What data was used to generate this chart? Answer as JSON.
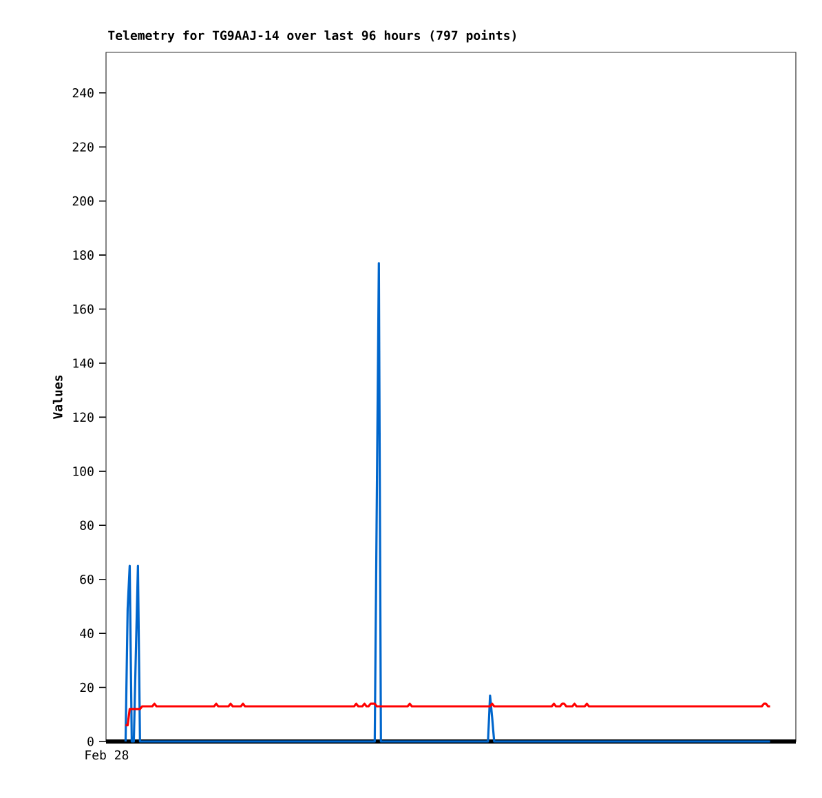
{
  "chart_data": {
    "type": "line",
    "title": "Telemetry for TG9AAJ-14 over last 96 hours (797 points)",
    "ylabel": "Values",
    "annotations": [
      "Feb 28"
    ],
    "categories": [
      null,
      null,
      null,
      null,
      null,
      null,
      null,
      null,
      null,
      null,
      null,
      null,
      null,
      null,
      null,
      null,
      null,
      null,
      null,
      null,
      null,
      null,
      null,
      null,
      null,
      null,
      null,
      null,
      null,
      null,
      null,
      null,
      null,
      null,
      null,
      null,
      null,
      null,
      null,
      null,
      null,
      null,
      null,
      null,
      null,
      null,
      null,
      null,
      null,
      null,
      null,
      null,
      null,
      null,
      null,
      null,
      null,
      null,
      null,
      null,
      null,
      null,
      null,
      null,
      null,
      null,
      null,
      null,
      null,
      null,
      null,
      null,
      null,
      null,
      null,
      null,
      null,
      null,
      null,
      null,
      null,
      null,
      null,
      null,
      null,
      null,
      null,
      null,
      null,
      null,
      null,
      null,
      null,
      null,
      null,
      null,
      null,
      null,
      null,
      null,
      null,
      null,
      null,
      null,
      null,
      null,
      null,
      null,
      null,
      null,
      null,
      null,
      null,
      null,
      null,
      null,
      null,
      null,
      null,
      null,
      null,
      null,
      null,
      null,
      null,
      null,
      null,
      null,
      null,
      null,
      null,
      null,
      null,
      null,
      null,
      null,
      null,
      null,
      null,
      null,
      null,
      null,
      null,
      null,
      null,
      null,
      null,
      null,
      null,
      null,
      null,
      null,
      null,
      null,
      null,
      null,
      null,
      null,
      null,
      null,
      null,
      null,
      null,
      null,
      null,
      null,
      null,
      null,
      null,
      null,
      null,
      null,
      null,
      null,
      null,
      null,
      null,
      null,
      null,
      null,
      null,
      null,
      null,
      null,
      null,
      null,
      null,
      null,
      null,
      null,
      null,
      null,
      null,
      null,
      null,
      null,
      null,
      null,
      null,
      null,
      null,
      null,
      null,
      null,
      null,
      null,
      null,
      null,
      null,
      null,
      null,
      null,
      null,
      null,
      null,
      null,
      null,
      null,
      null,
      null,
      null,
      null,
      null,
      null,
      null,
      null,
      null,
      null,
      null,
      null,
      null,
      null,
      null,
      null,
      null,
      null,
      null,
      null,
      null,
      null,
      null,
      null,
      null,
      null,
      null,
      null,
      null,
      null,
      null,
      null,
      null,
      null,
      null,
      null,
      null,
      null,
      null,
      null,
      null,
      null,
      null,
      null,
      null,
      null,
      null,
      null,
      null,
      null,
      null,
      null,
      null,
      null,
      null,
      null,
      null,
      null,
      null,
      null,
      null,
      null,
      null,
      null,
      null,
      null,
      null,
      null,
      null,
      null,
      null,
      null,
      null,
      null,
      null,
      null,
      null,
      null,
      null,
      null,
      null,
      null,
      null,
      null,
      null,
      null,
      null,
      null,
      null,
      null,
      null,
      null,
      null,
      null,
      null,
      null,
      null,
      null,
      null,
      null,
      null,
      null,
      null,
      null,
      null,
      null,
      null,
      null,
      null,
      null,
      null,
      null,
      null,
      null,
      null,
      null,
      null
    ],
    "ylim": [
      0,
      255
    ],
    "yticks": [
      0,
      20,
      40,
      60,
      80,
      100,
      120,
      140,
      160,
      180,
      200,
      220,
      240
    ],
    "ref_lines": [
      {
        "axis": "y",
        "value": 0,
        "color": "#000000"
      }
    ],
    "series": [
      {
        "color": "#0066cc",
        "values": [
          null,
          null,
          null,
          null,
          null,
          null,
          null,
          null,
          null,
          0,
          49,
          65,
          0,
          0,
          33,
          65,
          0,
          0,
          0,
          0,
          0,
          0,
          0,
          0,
          0,
          0,
          0,
          0,
          0,
          0,
          0,
          0,
          0,
          0,
          0,
          0,
          0,
          0,
          0,
          0,
          0,
          0,
          0,
          0,
          0,
          0,
          0,
          0,
          0,
          0,
          0,
          0,
          0,
          0,
          0,
          0,
          0,
          0,
          0,
          0,
          0,
          0,
          0,
          0,
          0,
          0,
          0,
          0,
          0,
          0,
          0,
          0,
          0,
          0,
          0,
          0,
          0,
          0,
          0,
          0,
          0,
          0,
          0,
          0,
          0,
          0,
          0,
          0,
          0,
          0,
          0,
          0,
          0,
          0,
          0,
          0,
          0,
          0,
          0,
          0,
          0,
          0,
          0,
          0,
          0,
          0,
          0,
          0,
          0,
          0,
          0,
          0,
          0,
          0,
          0,
          0,
          0,
          0,
          0,
          0,
          0,
          0,
          0,
          0,
          0,
          0,
          0,
          0,
          0,
          0,
          0,
          89,
          177,
          0,
          0,
          0,
          0,
          0,
          0,
          0,
          0,
          0,
          0,
          0,
          0,
          0,
          0,
          0,
          0,
          0,
          0,
          0,
          0,
          0,
          0,
          0,
          0,
          0,
          0,
          0,
          0,
          0,
          0,
          0,
          0,
          0,
          0,
          0,
          0,
          0,
          0,
          0,
          0,
          0,
          0,
          0,
          0,
          0,
          0,
          0,
          0,
          0,
          0,
          0,
          0,
          0,
          17,
          9,
          0,
          0,
          0,
          0,
          0,
          0,
          0,
          0,
          0,
          0,
          0,
          0,
          0,
          0,
          0,
          0,
          0,
          0,
          0,
          0,
          0,
          0,
          0,
          0,
          0,
          0,
          0,
          0,
          0,
          0,
          0,
          0,
          0,
          0,
          0,
          0,
          0,
          0,
          0,
          0,
          0,
          0,
          0,
          0,
          0,
          0,
          0,
          0,
          0,
          0,
          0,
          0,
          0,
          0,
          0,
          0,
          0,
          0,
          0,
          0,
          0,
          0,
          0,
          0,
          0,
          0,
          0,
          0,
          0,
          0,
          0,
          0,
          0,
          0,
          0,
          0,
          0,
          0,
          0,
          0,
          0,
          0,
          0,
          0,
          0,
          0,
          0,
          0,
          0,
          0,
          0,
          0,
          0,
          0,
          0,
          0,
          0,
          0,
          0,
          0,
          0,
          0,
          0,
          0,
          0,
          0,
          0,
          0,
          0,
          0,
          0,
          0,
          0,
          0,
          0,
          0,
          0,
          0,
          0,
          0,
          0,
          0,
          0,
          0,
          0,
          0,
          0,
          0,
          0,
          0,
          0,
          0,
          0,
          0,
          0,
          null,
          null,
          null,
          null,
          null,
          null,
          null,
          null,
          null,
          null,
          null,
          null
        ]
      },
      {
        "color": "#ff0000",
        "values": [
          null,
          null,
          null,
          null,
          null,
          null,
          null,
          null,
          null,
          6,
          6,
          12,
          12,
          12,
          12,
          12,
          12,
          13,
          13,
          13,
          13,
          13,
          13,
          14,
          13,
          13,
          13,
          13,
          13,
          13,
          13,
          13,
          13,
          13,
          13,
          13,
          13,
          13,
          13,
          13,
          13,
          13,
          13,
          13,
          13,
          13,
          13,
          13,
          13,
          13,
          13,
          13,
          13,
          14,
          13,
          13,
          13,
          13,
          13,
          13,
          14,
          13,
          13,
          13,
          13,
          13,
          14,
          13,
          13,
          13,
          13,
          13,
          13,
          13,
          13,
          13,
          13,
          13,
          13,
          13,
          13,
          13,
          13,
          13,
          13,
          13,
          13,
          13,
          13,
          13,
          13,
          13,
          13,
          13,
          13,
          13,
          13,
          13,
          13,
          13,
          13,
          13,
          13,
          13,
          13,
          13,
          13,
          13,
          13,
          13,
          13,
          13,
          13,
          13,
          13,
          13,
          13,
          13,
          13,
          13,
          13,
          14,
          13,
          13,
          13,
          14,
          13,
          13,
          14,
          14,
          14,
          13,
          13,
          13,
          13,
          13,
          13,
          13,
          13,
          13,
          13,
          13,
          13,
          13,
          13,
          13,
          13,
          14,
          13,
          13,
          13,
          13,
          13,
          13,
          13,
          13,
          13,
          13,
          13,
          13,
          13,
          13,
          13,
          13,
          13,
          13,
          13,
          13,
          13,
          13,
          13,
          13,
          13,
          13,
          13,
          13,
          13,
          13,
          13,
          13,
          13,
          13,
          13,
          13,
          13,
          13,
          13,
          14,
          13,
          13,
          13,
          13,
          13,
          13,
          13,
          13,
          13,
          13,
          13,
          13,
          13,
          13,
          13,
          13,
          13,
          13,
          13,
          13,
          13,
          13,
          13,
          13,
          13,
          13,
          13,
          13,
          13,
          14,
          13,
          13,
          13,
          14,
          14,
          13,
          13,
          13,
          13,
          14,
          13,
          13,
          13,
          13,
          13,
          14,
          13,
          13,
          13,
          13,
          13,
          13,
          13,
          13,
          13,
          13,
          13,
          13,
          13,
          13,
          13,
          13,
          13,
          13,
          13,
          13,
          13,
          13,
          13,
          13,
          13,
          13,
          13,
          13,
          13,
          13,
          13,
          13,
          13,
          13,
          13,
          13,
          13,
          13,
          13,
          13,
          13,
          13,
          13,
          13,
          13,
          13,
          13,
          13,
          13,
          13,
          13,
          13,
          13,
          13,
          13,
          13,
          13,
          13,
          13,
          13,
          13,
          13,
          13,
          13,
          13,
          13,
          13,
          13,
          13,
          13,
          13,
          13,
          13,
          13,
          13,
          13,
          13,
          13,
          13,
          13,
          13,
          13,
          13,
          13,
          13,
          14,
          14,
          13,
          13,
          null,
          null,
          null,
          null,
          null,
          null,
          null,
          null,
          null,
          null,
          null,
          null
        ]
      }
    ]
  }
}
